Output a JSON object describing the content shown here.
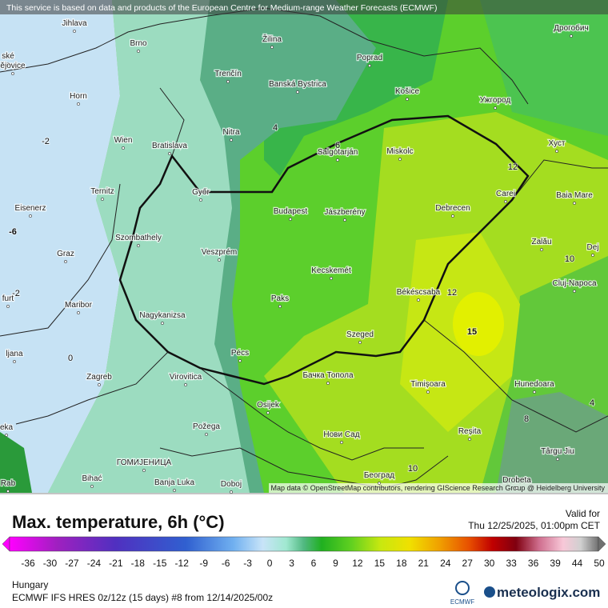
{
  "header": {
    "notice": "This service is based on data and products of the European Centre for Medium-range Weather Forecasts (ECMWF)"
  },
  "map": {
    "cities": [
      "Jihlava",
      "Brno",
      "Žilina",
      "Poprad",
      "Trenčín",
      "Banská Bystrica",
      "Košice",
      "Ужгород",
      "Дрогобич",
      "Horn",
      "Wien",
      "Bratislava",
      "Nitra",
      "Salgótarján",
      "Miskolc",
      "Хуст",
      "Ternitz",
      "Győr",
      "Budapest",
      "Jászberény",
      "Debrecen",
      "Carei",
      "Baia Mare",
      "Eisenerz",
      "Szombathely",
      "Veszprém",
      "Zalău",
      "Dej",
      "Graz",
      "Kecskemét",
      "Cluj-Napoca",
      "Békéscsaba",
      "Paks",
      "Maribor",
      "Nagykanizsa",
      "Szeged",
      "Pécs",
      "ljana",
      "Бачка Топола",
      "Virovitica",
      "Zagreb",
      "Timișoara",
      "Hunedoara",
      "Osijek",
      "Požega",
      "Reșita",
      "Нови Сад",
      "Târgu Jiu",
      "ГОМИЈЕНИЦА",
      "Bihać",
      "Banja Luka",
      "Doboj",
      "Београд",
      "Drobeta",
      "ské",
      "ějovice",
      "furt",
      "eka",
      "Rab"
    ],
    "contours": [
      "-2",
      "-6",
      "-2",
      "0",
      "4",
      "6",
      "12",
      "12",
      "15",
      "10",
      "10",
      "8",
      "4"
    ],
    "attribution": "Map data © OpenStreetMap contributors, rendering GIScience Research Group @ Heidelberg University"
  },
  "footer": {
    "title": "Max. temperature, 6h (°C)",
    "valid_label": "Valid for",
    "valid_time": "Thu 12/25/2025, 01:00pm CET",
    "region": "Hungary",
    "model": "ECMWF IFS HRES 0z/12z (15 days) #8 from  12/14/2025/00z",
    "ecmwf": "ECMWF",
    "brand": "meteologix.com"
  },
  "legend": {
    "ticks": [
      -36,
      -30,
      -27,
      -24,
      -21,
      -18,
      -15,
      -12,
      -9,
      -6,
      -3,
      0,
      3,
      6,
      9,
      12,
      15,
      18,
      21,
      24,
      27,
      30,
      33,
      36,
      39,
      44,
      50
    ]
  }
}
